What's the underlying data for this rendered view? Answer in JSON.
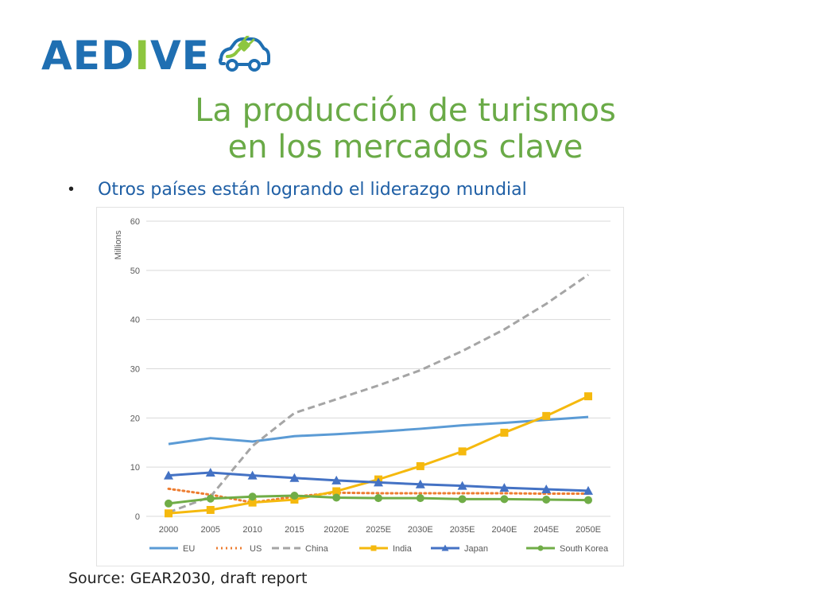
{
  "logo": {
    "text_pre": "AED",
    "text_accent": "I",
    "text_post": "VE",
    "icon": "car-plug-icon",
    "colors": {
      "blue": "#1f6fb2",
      "green": "#8dc63f"
    }
  },
  "title": {
    "line1": "La producción de turismos",
    "line2": "en los mercados clave"
  },
  "bullet": {
    "text": "Otros países están logrando el liderazgo mundial"
  },
  "source": "Source: GEAR2030, draft report",
  "chart_data": {
    "type": "line",
    "ylabel": "Millions",
    "ylim": [
      0,
      60
    ],
    "yticks": [
      0,
      10,
      20,
      30,
      40,
      50,
      60
    ],
    "grid": true,
    "legend_position": "bottom",
    "categories": [
      "2000",
      "2005",
      "2010",
      "2015",
      "2020E",
      "2025E",
      "2030E",
      "2035E",
      "2040E",
      "2045E",
      "2050E"
    ],
    "series": [
      {
        "name": "EU",
        "color": "#5b9bd5",
        "style": "solid",
        "marker": "none",
        "values": [
          14.7,
          15.9,
          15.2,
          16.3,
          16.7,
          17.2,
          17.8,
          18.5,
          19.0,
          19.6,
          20.2
        ]
      },
      {
        "name": "US",
        "color": "#ed7d31",
        "style": "dotted",
        "marker": "none",
        "values": [
          5.6,
          4.4,
          2.8,
          4.0,
          4.8,
          4.7,
          4.7,
          4.7,
          4.7,
          4.6,
          4.6
        ]
      },
      {
        "name": "China",
        "color": "#a5a5a5",
        "style": "dashed",
        "marker": "none",
        "values": [
          0.8,
          4.0,
          14.3,
          21.0,
          23.8,
          26.6,
          29.7,
          33.6,
          38.0,
          43.2,
          49.1
        ]
      },
      {
        "name": "India",
        "color": "#f5b90e",
        "style": "solid",
        "marker": "square",
        "values": [
          0.6,
          1.3,
          2.8,
          3.4,
          5.1,
          7.5,
          10.2,
          13.2,
          17.0,
          20.4,
          24.4
        ]
      },
      {
        "name": "Japan",
        "color": "#4472c4",
        "style": "solid",
        "marker": "triangle",
        "values": [
          8.3,
          8.9,
          8.3,
          7.8,
          7.3,
          6.9,
          6.5,
          6.2,
          5.8,
          5.5,
          5.2
        ]
      },
      {
        "name": "South Korea",
        "color": "#70ad47",
        "style": "solid",
        "marker": "circle",
        "values": [
          2.6,
          3.6,
          4.0,
          4.2,
          3.8,
          3.7,
          3.7,
          3.5,
          3.5,
          3.4,
          3.3
        ]
      }
    ]
  }
}
